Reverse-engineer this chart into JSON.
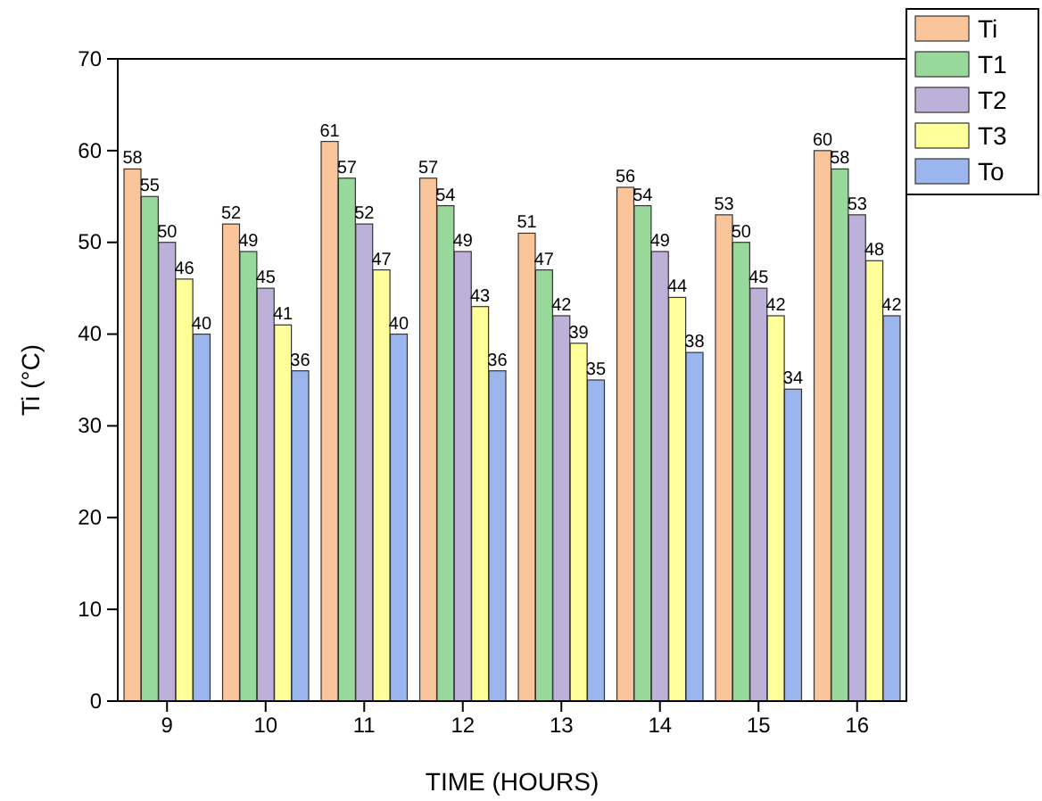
{
  "chart_data": {
    "type": "bar",
    "xlabel": "TIME (HOURS)",
    "ylabel": "Ti (°C)",
    "categories": [
      "9",
      "10",
      "11",
      "12",
      "13",
      "14",
      "15",
      "16"
    ],
    "series": [
      {
        "name": "Ti",
        "color": "#fbc59c",
        "values": [
          58,
          52,
          61,
          57,
          51,
          56,
          53,
          60
        ]
      },
      {
        "name": "T1",
        "color": "#99d89b",
        "values": [
          55,
          49,
          57,
          54,
          47,
          54,
          50,
          58
        ]
      },
      {
        "name": "T2",
        "color": "#bdb0d9",
        "values": [
          50,
          45,
          52,
          49,
          42,
          49,
          45,
          53
        ]
      },
      {
        "name": "T3",
        "color": "#ffff99",
        "values": [
          46,
          41,
          47,
          43,
          39,
          44,
          42,
          48
        ]
      },
      {
        "name": "To",
        "color": "#9bb5ef",
        "values": [
          40,
          36,
          40,
          36,
          35,
          38,
          34,
          42
        ]
      }
    ],
    "ylim": [
      0,
      70
    ],
    "yticks": [
      0,
      10,
      20,
      30,
      40,
      50,
      60,
      70
    ],
    "data_labels": true,
    "legend": "top right",
    "grid": false
  }
}
